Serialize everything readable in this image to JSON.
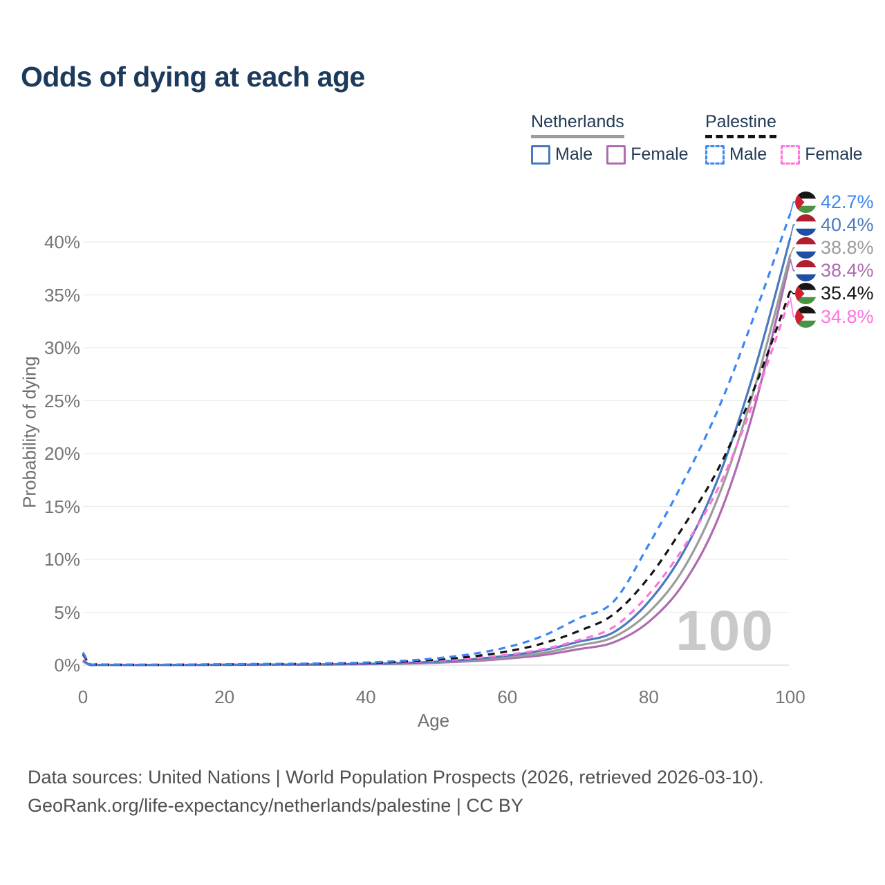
{
  "title": "Odds of dying at each age",
  "watermark": "100",
  "legend": {
    "groups": [
      {
        "name": "Netherlands",
        "line": "solid",
        "underline_color": "#9c9c9c",
        "items": [
          {
            "label": "Male",
            "color": "#4a79bd"
          },
          {
            "label": "Female",
            "color": "#ae6cb0"
          }
        ]
      },
      {
        "name": "Palestine",
        "line": "dashed",
        "underline_color": "#141414",
        "items": [
          {
            "label": "Male",
            "color": "#3c86f4"
          },
          {
            "label": "Female",
            "color": "#ff73df"
          }
        ]
      }
    ]
  },
  "footer": {
    "line1": "Data sources: United Nations | World Population Prospects (2026, retrieved 2026-03-10).",
    "line2": "GeoRank.org/life-expectancy/netherlands/palestine | CC BY"
  },
  "chart_data": {
    "type": "line",
    "title": "Odds of dying at each age",
    "xlabel": "Age",
    "ylabel": "Probability of dying",
    "xlim": [
      0,
      100
    ],
    "ylim_percent": [
      0,
      44
    ],
    "grid": "horizontal",
    "x_tick_values": [
      0,
      20,
      40,
      60,
      80,
      100
    ],
    "x_tick_labels": [
      "0",
      "20",
      "40",
      "60",
      "80",
      "100"
    ],
    "y_tick_values": [
      0,
      5,
      10,
      15,
      20,
      25,
      30,
      35,
      40
    ],
    "y_tick_labels": [
      "0%",
      "5%",
      "10%",
      "15%",
      "20%",
      "25%",
      "30%",
      "35%",
      "40%"
    ],
    "ages": [
      0,
      1,
      2,
      5,
      10,
      15,
      20,
      25,
      30,
      35,
      40,
      45,
      50,
      55,
      60,
      65,
      70,
      75,
      80,
      85,
      90,
      95,
      100
    ],
    "series": [
      {
        "name": "Palestine Male",
        "country": "Palestine",
        "sex": "Male",
        "line": "dashed",
        "color": "#3c86f4",
        "flag": "palestine",
        "end_label": "42.7%",
        "end_value_pct": 42.7,
        "values_pct": [
          1.2,
          0.12,
          0.08,
          0.05,
          0.04,
          0.06,
          0.09,
          0.11,
          0.13,
          0.17,
          0.25,
          0.4,
          0.65,
          1.05,
          1.7,
          2.75,
          4.4,
          6.0,
          11.4,
          17.5,
          24.5,
          33.2,
          42.7
        ]
      },
      {
        "name": "Netherlands Male",
        "country": "Netherlands",
        "sex": "Male",
        "line": "solid",
        "color": "#4a79bd",
        "flag": "netherlands",
        "end_label": "40.4%",
        "end_value_pct": 40.4,
        "values_pct": [
          0.45,
          0.03,
          0.02,
          0.01,
          0.01,
          0.02,
          0.04,
          0.05,
          0.06,
          0.08,
          0.12,
          0.2,
          0.33,
          0.55,
          0.9,
          1.4,
          2.2,
          3.1,
          6.0,
          10.8,
          18.0,
          28.0,
          40.4
        ]
      },
      {
        "name": "Netherlands Both sexes",
        "country": "Netherlands",
        "sex": "Both",
        "line": "solid",
        "color": "#9c9c9c",
        "flag": "netherlands",
        "end_label": "38.8%",
        "end_value_pct": 38.8,
        "values_pct": [
          0.4,
          0.025,
          0.018,
          0.01,
          0.01,
          0.018,
          0.03,
          0.04,
          0.05,
          0.07,
          0.1,
          0.17,
          0.28,
          0.46,
          0.75,
          1.15,
          1.85,
          2.65,
          5.0,
          9.2,
          16.2,
          26.3,
          38.8
        ]
      },
      {
        "name": "Netherlands Female",
        "country": "Netherlands",
        "sex": "Female",
        "line": "solid",
        "color": "#ae6cb0",
        "flag": "netherlands",
        "end_label": "38.4%",
        "end_value_pct": 38.4,
        "values_pct": [
          0.35,
          0.02,
          0.015,
          0.01,
          0.01,
          0.015,
          0.025,
          0.033,
          0.042,
          0.06,
          0.085,
          0.14,
          0.23,
          0.38,
          0.62,
          0.95,
          1.5,
          2.15,
          4.1,
          7.8,
          14.2,
          24.5,
          38.4
        ]
      },
      {
        "name": "Palestine Both sexes",
        "country": "Palestine",
        "sex": "Both",
        "line": "dashed",
        "color": "#141414",
        "flag": "palestine",
        "end_label": "35.4%",
        "end_value_pct": 35.4,
        "values_pct": [
          1.05,
          0.1,
          0.07,
          0.045,
          0.035,
          0.05,
          0.075,
          0.09,
          0.11,
          0.14,
          0.2,
          0.32,
          0.52,
          0.82,
          1.3,
          2.05,
          3.2,
          4.8,
          8.3,
          13.2,
          18.8,
          26.3,
          35.4
        ]
      },
      {
        "name": "Palestine Female",
        "country": "Palestine",
        "sex": "Female",
        "line": "dashed",
        "color": "#ff73df",
        "flag": "palestine",
        "end_label": "34.8%",
        "end_value_pct": 34.8,
        "values_pct": [
          0.95,
          0.09,
          0.06,
          0.04,
          0.03,
          0.045,
          0.06,
          0.075,
          0.09,
          0.12,
          0.16,
          0.26,
          0.42,
          0.65,
          0.98,
          1.5,
          2.35,
          3.6,
          6.7,
          11.2,
          17.0,
          25.2,
          34.8
        ]
      }
    ]
  }
}
